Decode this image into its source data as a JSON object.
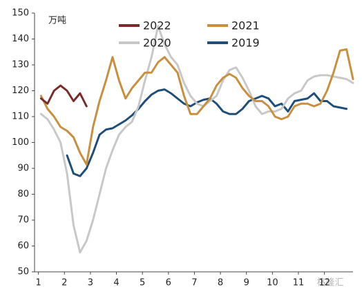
{
  "chart_data": {
    "type": "line",
    "y_label": "万吨",
    "watermark": "格隆汇",
    "x": [
      1.1,
      1.35,
      1.6,
      1.85,
      2.1,
      2.35,
      2.6,
      2.85,
      3.1,
      3.35,
      3.6,
      3.85,
      4.1,
      4.35,
      4.6,
      4.85,
      5.1,
      5.35,
      5.6,
      5.85,
      6.1,
      6.35,
      6.6,
      6.85,
      7.1,
      7.35,
      7.6,
      7.85,
      8.1,
      8.35,
      8.6,
      8.85,
      9.1,
      9.35,
      9.6,
      9.85,
      10.1,
      10.35,
      10.6,
      10.85,
      11.1,
      11.35,
      11.6,
      11.85,
      12.1,
      12.35,
      12.6,
      12.85,
      13.1
    ],
    "series": [
      {
        "name": "2022",
        "color": "#7b2a2a",
        "values": [
          117,
          115,
          120,
          122,
          120,
          116,
          119,
          114,
          null,
          null,
          null,
          null,
          null,
          null,
          null,
          null,
          null,
          null,
          null,
          null,
          null,
          null,
          null,
          null,
          null,
          null,
          null,
          null,
          null,
          null,
          null,
          null,
          null,
          null,
          null,
          null,
          null,
          null,
          null,
          null,
          null,
          null,
          null,
          null,
          null,
          null,
          null,
          null,
          null
        ]
      },
      {
        "name": "2021",
        "color": "#c8903e",
        "values": [
          118,
          113,
          110,
          106,
          104.5,
          102,
          96,
          91.5,
          106,
          116,
          124,
          133,
          124,
          117,
          121,
          124,
          127,
          127,
          131,
          133,
          130,
          127,
          118,
          111,
          111,
          114,
          117,
          122,
          125,
          126.5,
          125,
          121,
          118,
          116,
          116,
          114,
          110,
          109,
          110,
          114,
          115,
          115,
          114,
          115,
          120,
          127,
          135.5,
          136,
          124.5
        ]
      },
      {
        "name": "2020",
        "color": "#c8c8c8",
        "values": [
          111,
          109,
          105,
          100,
          88,
          68,
          57.5,
          62,
          70,
          80,
          90,
          97,
          103,
          106,
          108,
          114,
          124,
          133,
          145,
          138,
          133,
          130,
          123,
          118,
          115,
          114,
          116,
          118,
          124,
          128,
          129,
          125,
          120,
          114,
          111,
          112,
          112,
          113,
          117,
          119,
          120,
          124,
          125.5,
          126,
          126,
          125.5,
          125,
          124.5,
          123
        ]
      },
      {
        "name": "2019",
        "color": "#1f4e79",
        "values": [
          null,
          null,
          null,
          null,
          95,
          88,
          87,
          90,
          96,
          103,
          105,
          105.5,
          107,
          108.5,
          110.5,
          113,
          116,
          118.5,
          120,
          120.5,
          119,
          117,
          115,
          114,
          115.5,
          116.5,
          117,
          115,
          112,
          111,
          111,
          113,
          116,
          117,
          118,
          117,
          114,
          115,
          112,
          116,
          116.5,
          117,
          119,
          116,
          116,
          114,
          113.5,
          113,
          null
        ]
      }
    ],
    "xlim": [
      0.85,
      13.1
    ],
    "xticks": [
      1,
      2,
      3,
      4,
      5,
      6,
      7,
      8,
      9,
      10,
      11,
      12
    ],
    "ylim": [
      50,
      150
    ],
    "yticks": [
      50,
      60,
      70,
      80,
      90,
      100,
      110,
      120,
      130,
      140,
      150
    ]
  }
}
